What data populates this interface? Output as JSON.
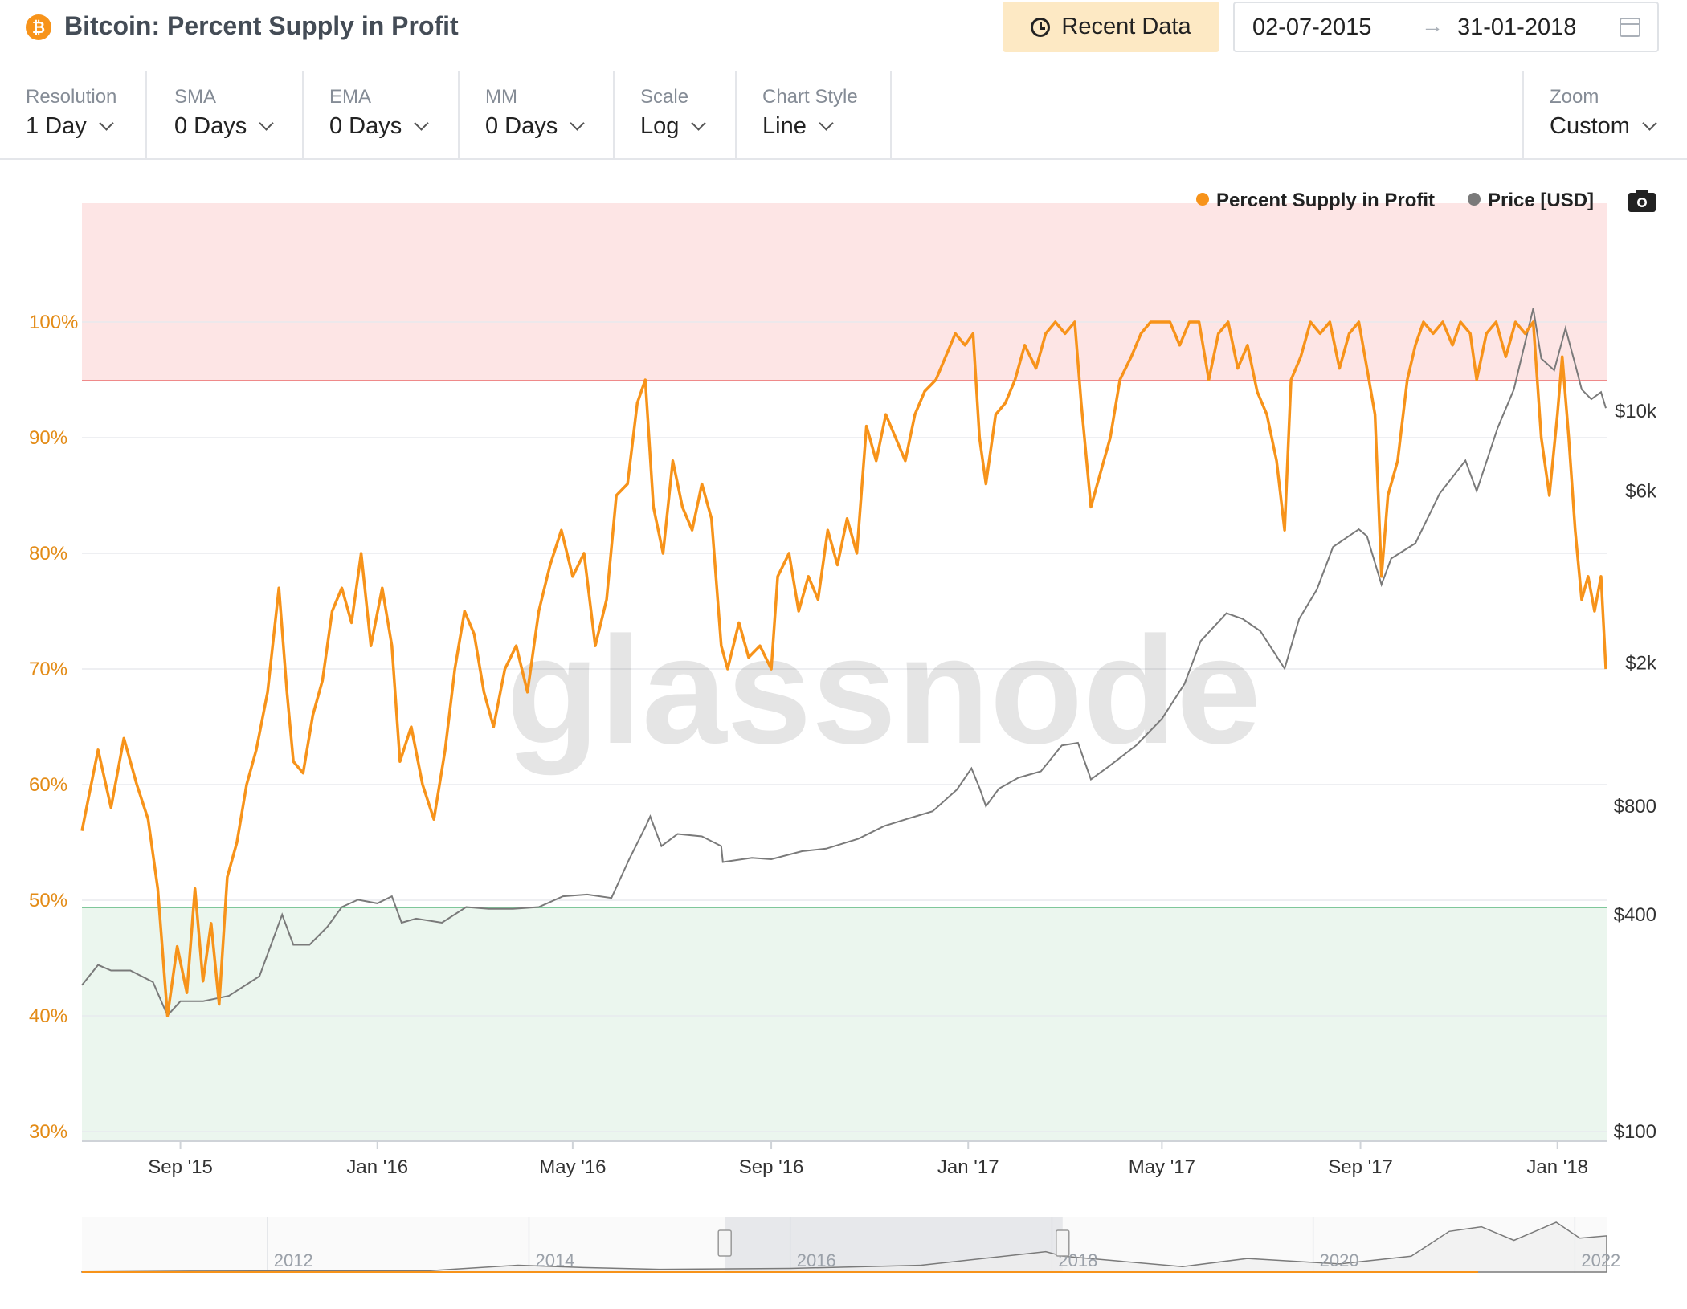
{
  "header": {
    "coin_symbol": "₿",
    "title": "Bitcoin: Percent Supply in Profit",
    "recent_button": "Recent Data",
    "date_start": "02-07-2015",
    "date_arrow": "→",
    "date_end": "31-01-2018"
  },
  "controls": [
    {
      "label": "Resolution",
      "value": "1 Day"
    },
    {
      "label": "SMA",
      "value": "0 Days"
    },
    {
      "label": "EMA",
      "value": "0 Days"
    },
    {
      "label": "MM",
      "value": "0 Days"
    },
    {
      "label": "Scale",
      "value": "Log"
    },
    {
      "label": "Chart Style",
      "value": "Line"
    }
  ],
  "zoom": {
    "label": "Zoom",
    "value": "Custom"
  },
  "colors": {
    "profit": "#f7931a",
    "price": "#7a7a7a",
    "red_zone": "#fde5e5",
    "green_zone": "#ebf6ee"
  },
  "chart_data": {
    "type": "line",
    "legend": [
      "Percent Supply in Profit",
      "Price [USD]"
    ],
    "legend_position": "top-right",
    "watermark": "glassnode",
    "x_ticks": [
      "Sep '15",
      "Jan '16",
      "May '16",
      "Sep '16",
      "Jan '17",
      "May '17",
      "Sep '17",
      "Jan '18"
    ],
    "y_left": {
      "ticks": [
        "30%",
        "40%",
        "50%",
        "60%",
        "70%",
        "80%",
        "90%",
        "100%"
      ],
      "range": [
        30,
        110
      ]
    },
    "y_right": {
      "scale": "log",
      "ticks": [
        "$100",
        "$400",
        "$800",
        "$2k",
        "$6k",
        "$10k"
      ],
      "range": [
        100,
        30000
      ]
    },
    "bands": {
      "red_zone_min": 95,
      "green_zone_max": 50
    },
    "series": [
      {
        "name": "Percent Supply in Profit",
        "axis": "left",
        "points": [
          [
            "2015-07-02",
            56
          ],
          [
            "2015-07-12",
            63
          ],
          [
            "2015-07-20",
            58
          ],
          [
            "2015-07-28",
            64
          ],
          [
            "2015-08-05",
            60
          ],
          [
            "2015-08-12",
            57
          ],
          [
            "2015-08-18",
            51
          ],
          [
            "2015-08-24",
            40
          ],
          [
            "2015-08-30",
            46
          ],
          [
            "2015-09-05",
            42
          ],
          [
            "2015-09-10",
            51
          ],
          [
            "2015-09-15",
            43
          ],
          [
            "2015-09-20",
            48
          ],
          [
            "2015-09-25",
            41
          ],
          [
            "2015-09-30",
            52
          ],
          [
            "2015-10-06",
            55
          ],
          [
            "2015-10-12",
            60
          ],
          [
            "2015-10-18",
            63
          ],
          [
            "2015-10-25",
            68
          ],
          [
            "2015-11-01",
            77
          ],
          [
            "2015-11-06",
            68
          ],
          [
            "2015-11-10",
            62
          ],
          [
            "2015-11-16",
            61
          ],
          [
            "2015-11-22",
            66
          ],
          [
            "2015-11-28",
            69
          ],
          [
            "2015-12-04",
            75
          ],
          [
            "2015-12-10",
            77
          ],
          [
            "2015-12-16",
            74
          ],
          [
            "2015-12-22",
            80
          ],
          [
            "2015-12-28",
            72
          ],
          [
            "2016-01-04",
            77
          ],
          [
            "2016-01-10",
            72
          ],
          [
            "2016-01-15",
            62
          ],
          [
            "2016-01-22",
            65
          ],
          [
            "2016-01-29",
            60
          ],
          [
            "2016-02-05",
            57
          ],
          [
            "2016-02-12",
            63
          ],
          [
            "2016-02-18",
            70
          ],
          [
            "2016-02-24",
            75
          ],
          [
            "2016-03-01",
            73
          ],
          [
            "2016-03-07",
            68
          ],
          [
            "2016-03-13",
            65
          ],
          [
            "2016-03-20",
            70
          ],
          [
            "2016-03-27",
            72
          ],
          [
            "2016-04-03",
            68
          ],
          [
            "2016-04-10",
            75
          ],
          [
            "2016-04-17",
            79
          ],
          [
            "2016-04-24",
            82
          ],
          [
            "2016-05-01",
            78
          ],
          [
            "2016-05-08",
            80
          ],
          [
            "2016-05-15",
            72
          ],
          [
            "2016-05-22",
            76
          ],
          [
            "2016-05-28",
            85
          ],
          [
            "2016-06-04",
            86
          ],
          [
            "2016-06-10",
            93
          ],
          [
            "2016-06-15",
            95
          ],
          [
            "2016-06-20",
            84
          ],
          [
            "2016-06-26",
            80
          ],
          [
            "2016-07-02",
            88
          ],
          [
            "2016-07-08",
            84
          ],
          [
            "2016-07-14",
            82
          ],
          [
            "2016-07-20",
            86
          ],
          [
            "2016-07-26",
            83
          ],
          [
            "2016-08-01",
            72
          ],
          [
            "2016-08-05",
            70
          ],
          [
            "2016-08-12",
            74
          ],
          [
            "2016-08-18",
            71
          ],
          [
            "2016-08-25",
            72
          ],
          [
            "2016-09-01",
            70
          ],
          [
            "2016-09-05",
            78
          ],
          [
            "2016-09-12",
            80
          ],
          [
            "2016-09-18",
            75
          ],
          [
            "2016-09-24",
            78
          ],
          [
            "2016-09-30",
            76
          ],
          [
            "2016-10-06",
            82
          ],
          [
            "2016-10-12",
            79
          ],
          [
            "2016-10-18",
            83
          ],
          [
            "2016-10-24",
            80
          ],
          [
            "2016-10-30",
            91
          ],
          [
            "2016-11-05",
            88
          ],
          [
            "2016-11-11",
            92
          ],
          [
            "2016-11-17",
            90
          ],
          [
            "2016-11-23",
            88
          ],
          [
            "2016-11-29",
            92
          ],
          [
            "2016-12-05",
            94
          ],
          [
            "2016-12-12",
            95
          ],
          [
            "2016-12-18",
            97
          ],
          [
            "2016-12-24",
            99
          ],
          [
            "2016-12-30",
            98
          ],
          [
            "2017-01-04",
            99
          ],
          [
            "2017-01-08",
            90
          ],
          [
            "2017-01-12",
            86
          ],
          [
            "2017-01-18",
            92
          ],
          [
            "2017-01-24",
            93
          ],
          [
            "2017-01-30",
            95
          ],
          [
            "2017-02-05",
            98
          ],
          [
            "2017-02-12",
            96
          ],
          [
            "2017-02-18",
            99
          ],
          [
            "2017-02-24",
            100
          ],
          [
            "2017-03-02",
            99
          ],
          [
            "2017-03-08",
            100
          ],
          [
            "2017-03-12",
            93
          ],
          [
            "2017-03-18",
            84
          ],
          [
            "2017-03-24",
            87
          ],
          [
            "2017-03-30",
            90
          ],
          [
            "2017-04-05",
            95
          ],
          [
            "2017-04-12",
            97
          ],
          [
            "2017-04-18",
            99
          ],
          [
            "2017-04-24",
            100
          ],
          [
            "2017-04-30",
            100
          ],
          [
            "2017-05-06",
            100
          ],
          [
            "2017-05-12",
            98
          ],
          [
            "2017-05-18",
            100
          ],
          [
            "2017-05-24",
            100
          ],
          [
            "2017-05-30",
            95
          ],
          [
            "2017-06-05",
            99
          ],
          [
            "2017-06-11",
            100
          ],
          [
            "2017-06-17",
            96
          ],
          [
            "2017-06-23",
            98
          ],
          [
            "2017-06-29",
            94
          ],
          [
            "2017-07-05",
            92
          ],
          [
            "2017-07-11",
            88
          ],
          [
            "2017-07-16",
            82
          ],
          [
            "2017-07-20",
            95
          ],
          [
            "2017-07-26",
            97
          ],
          [
            "2017-08-01",
            100
          ],
          [
            "2017-08-07",
            99
          ],
          [
            "2017-08-13",
            100
          ],
          [
            "2017-08-19",
            96
          ],
          [
            "2017-08-25",
            99
          ],
          [
            "2017-08-31",
            100
          ],
          [
            "2017-09-05",
            96
          ],
          [
            "2017-09-10",
            92
          ],
          [
            "2017-09-14",
            78
          ],
          [
            "2017-09-18",
            85
          ],
          [
            "2017-09-24",
            88
          ],
          [
            "2017-09-30",
            95
          ],
          [
            "2017-10-05",
            98
          ],
          [
            "2017-10-10",
            100
          ],
          [
            "2017-10-16",
            99
          ],
          [
            "2017-10-22",
            100
          ],
          [
            "2017-10-28",
            98
          ],
          [
            "2017-11-02",
            100
          ],
          [
            "2017-11-08",
            99
          ],
          [
            "2017-11-12",
            95
          ],
          [
            "2017-11-18",
            99
          ],
          [
            "2017-11-24",
            100
          ],
          [
            "2017-11-30",
            97
          ],
          [
            "2017-12-06",
            100
          ],
          [
            "2017-12-12",
            99
          ],
          [
            "2017-12-17",
            100
          ],
          [
            "2017-12-22",
            90
          ],
          [
            "2017-12-27",
            85
          ],
          [
            "2018-01-01",
            92
          ],
          [
            "2018-01-04",
            97
          ],
          [
            "2018-01-08",
            90
          ],
          [
            "2018-01-12",
            82
          ],
          [
            "2018-01-16",
            76
          ],
          [
            "2018-01-20",
            78
          ],
          [
            "2018-01-24",
            75
          ],
          [
            "2018-01-28",
            78
          ],
          [
            "2018-01-31",
            70
          ]
        ]
      },
      {
        "name": "Price [USD]",
        "axis": "right",
        "points": [
          [
            "2015-07-02",
            255
          ],
          [
            "2015-07-12",
            290
          ],
          [
            "2015-07-20",
            280
          ],
          [
            "2015-08-01",
            280
          ],
          [
            "2015-08-15",
            260
          ],
          [
            "2015-08-24",
            210
          ],
          [
            "2015-09-01",
            230
          ],
          [
            "2015-09-15",
            230
          ],
          [
            "2015-10-01",
            238
          ],
          [
            "2015-10-20",
            270
          ],
          [
            "2015-11-03",
            400
          ],
          [
            "2015-11-10",
            330
          ],
          [
            "2015-11-20",
            330
          ],
          [
            "2015-12-01",
            370
          ],
          [
            "2015-12-10",
            420
          ],
          [
            "2015-12-20",
            440
          ],
          [
            "2016-01-01",
            430
          ],
          [
            "2016-01-10",
            450
          ],
          [
            "2016-01-16",
            380
          ],
          [
            "2016-01-25",
            390
          ],
          [
            "2016-02-10",
            380
          ],
          [
            "2016-02-25",
            420
          ],
          [
            "2016-03-10",
            415
          ],
          [
            "2016-03-25",
            415
          ],
          [
            "2016-04-10",
            420
          ],
          [
            "2016-04-25",
            450
          ],
          [
            "2016-05-10",
            455
          ],
          [
            "2016-05-25",
            445
          ],
          [
            "2016-06-05",
            570
          ],
          [
            "2016-06-15",
            700
          ],
          [
            "2016-06-18",
            750
          ],
          [
            "2016-06-25",
            620
          ],
          [
            "2016-07-05",
            670
          ],
          [
            "2016-07-20",
            660
          ],
          [
            "2016-08-01",
            620
          ],
          [
            "2016-08-02",
            560
          ],
          [
            "2016-08-20",
            575
          ],
          [
            "2016-09-01",
            570
          ],
          [
            "2016-09-20",
            600
          ],
          [
            "2016-10-05",
            610
          ],
          [
            "2016-10-25",
            650
          ],
          [
            "2016-11-10",
            705
          ],
          [
            "2016-11-25",
            740
          ],
          [
            "2016-12-10",
            775
          ],
          [
            "2016-12-25",
            890
          ],
          [
            "2017-01-03",
            1020
          ],
          [
            "2017-01-08",
            900
          ],
          [
            "2017-01-12",
            800
          ],
          [
            "2017-01-20",
            895
          ],
          [
            "2017-02-01",
            960
          ],
          [
            "2017-02-15",
            1000
          ],
          [
            "2017-02-28",
            1180
          ],
          [
            "2017-03-10",
            1200
          ],
          [
            "2017-03-18",
            950
          ],
          [
            "2017-03-30",
            1040
          ],
          [
            "2017-04-15",
            1180
          ],
          [
            "2017-05-01",
            1400
          ],
          [
            "2017-05-15",
            1750
          ],
          [
            "2017-05-25",
            2300
          ],
          [
            "2017-06-10",
            2750
          ],
          [
            "2017-06-20",
            2650
          ],
          [
            "2017-07-01",
            2450
          ],
          [
            "2017-07-16",
            1930
          ],
          [
            "2017-07-25",
            2650
          ],
          [
            "2017-08-05",
            3200
          ],
          [
            "2017-08-15",
            4200
          ],
          [
            "2017-08-31",
            4700
          ],
          [
            "2017-09-05",
            4500
          ],
          [
            "2017-09-14",
            3300
          ],
          [
            "2017-09-20",
            3900
          ],
          [
            "2017-10-05",
            4300
          ],
          [
            "2017-10-20",
            5900
          ],
          [
            "2017-11-05",
            7300
          ],
          [
            "2017-11-12",
            6000
          ],
          [
            "2017-11-25",
            9000
          ],
          [
            "2017-12-05",
            11500
          ],
          [
            "2017-12-17",
            19300
          ],
          [
            "2017-12-22",
            14000
          ],
          [
            "2017-12-30",
            13000
          ],
          [
            "2018-01-06",
            17000
          ],
          [
            "2018-01-12",
            13500
          ],
          [
            "2018-01-16",
            11500
          ],
          [
            "2018-01-22",
            10800
          ],
          [
            "2018-01-28",
            11300
          ],
          [
            "2018-01-31",
            10200
          ]
        ]
      }
    ],
    "navigator": {
      "ticks": [
        "2012",
        "2014",
        "2016",
        "2018",
        "2020",
        "2022"
      ],
      "selection": [
        "2015-07-02",
        "2018-01-31"
      ],
      "series": [
        [
          "2010-08-01",
          0.3
        ],
        [
          "2011-06-01",
          2
        ],
        [
          "2013-04-01",
          3
        ],
        [
          "2013-12-01",
          15
        ],
        [
          "2014-06-01",
          10
        ],
        [
          "2015-01-01",
          6
        ],
        [
          "2016-01-01",
          8
        ],
        [
          "2017-01-01",
          15
        ],
        [
          "2017-12-15",
          45
        ],
        [
          "2018-02-01",
          35
        ],
        [
          "2019-01-01",
          12
        ],
        [
          "2019-07-01",
          30
        ],
        [
          "2020-03-15",
          18
        ],
        [
          "2020-10-01",
          35
        ],
        [
          "2021-01-15",
          90
        ],
        [
          "2021-04-15",
          100
        ],
        [
          "2021-07-15",
          70
        ],
        [
          "2021-11-10",
          110
        ],
        [
          "2022-01-15",
          75
        ],
        [
          "2022-03-31",
          80
        ]
      ]
    }
  }
}
